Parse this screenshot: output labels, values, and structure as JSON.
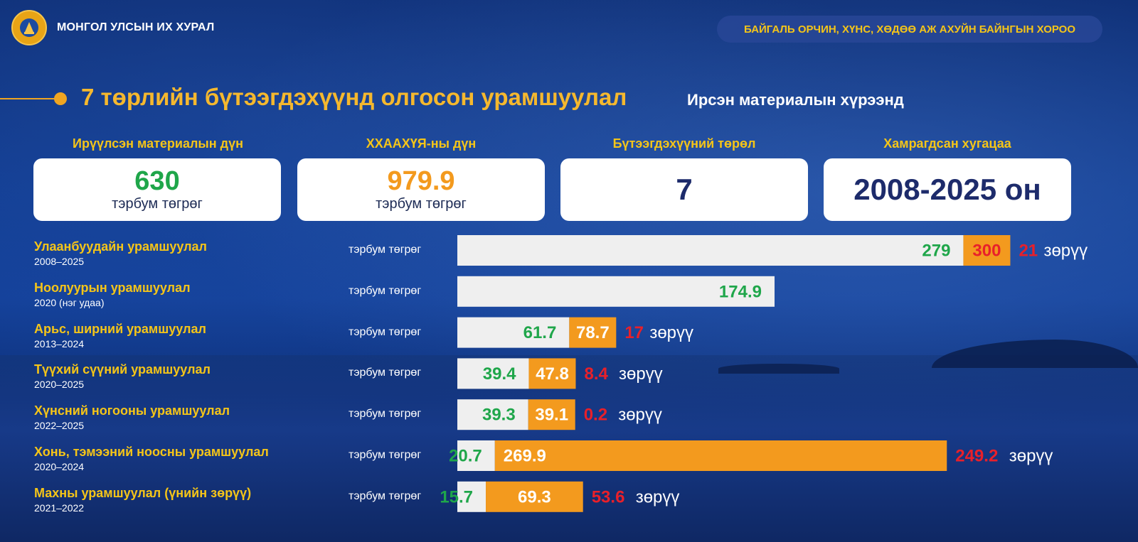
{
  "header": {
    "organization": "МОНГОЛ УЛСЫН ИХ ХУРАЛ",
    "committee": "БАЙГАЛЬ ОРЧИН, ХҮНС, ХӨДӨӨ АЖ АХУЙН БАЙНГЫН ХОРОО"
  },
  "title": {
    "main": "7 төрлийн бүтээгдэхүүнд олгосон урамшуулал",
    "sub": "Ирсэн материалын хүрээнд"
  },
  "kpis": [
    {
      "label": "Ирүүлсэн материалын дүн",
      "value": "630",
      "unit": "тэрбум төгрөг",
      "color": "#1fa64a"
    },
    {
      "label": "ХХААХҮЯ-ны дүн",
      "value": "979.9",
      "unit": "тэрбум төгрөг",
      "color": "#f39a1e"
    },
    {
      "label": "Бүтээгдэхүүний төрөл",
      "value": "7",
      "unit": ""
    },
    {
      "label": "Хамрагдсан хугацаа",
      "value": "2008-2025 он",
      "unit": ""
    }
  ],
  "colors": {
    "submitted": "#1fa64a",
    "ministry": "#f39a1e",
    "difference": "#e8202a",
    "track": "#efefef",
    "accent": "#f5c518"
  },
  "chart_data": {
    "type": "bar",
    "unit": "тэрбум төгрөг",
    "diff_suffix": "зөрүү",
    "categories": [
      "Улаанбуудайн урамшуулал",
      "Ноолуурын урамшуулал",
      "Арьс, ширний урамшуулал",
      "Түүхий сүүний урамшуулал",
      "Хүнсний ногооны урамшуулал",
      "Хонь, тэмээний ноосны урамшуулал",
      "Махны урамшуулал (үнийн зөрүү)"
    ],
    "periods": [
      "2008–2025",
      "2020 (нэг удаа)",
      "2013–2024",
      "2020–2025",
      "2022–2025",
      "2020–2024",
      "2021–2022"
    ],
    "series": [
      {
        "values": [
          279,
          174.9,
          61.7,
          39.4,
          39.3,
          20.7,
          15.7
        ]
      },
      {
        "values": [
          300,
          null,
          78.7,
          47.8,
          39.1,
          269.9,
          69.3
        ]
      }
    ],
    "value_labels": [
      [
        "279",
        "174.9",
        "61.7",
        "39.4",
        "39.3",
        "20.7",
        "15.7"
      ],
      [
        "300",
        "",
        "78.7",
        "47.8",
        "39.1",
        "269.9",
        "69.3"
      ]
    ],
    "differences": [
      "21",
      "",
      "17",
      "8.4",
      "0.2",
      "249.2",
      "53.6"
    ]
  }
}
